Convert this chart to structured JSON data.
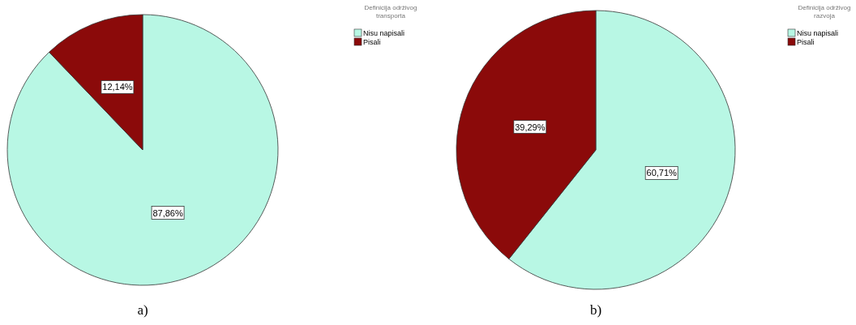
{
  "chart_data": [
    {
      "type": "pie",
      "legend_title": "Definicija održivog transporta",
      "categories": [
        "Nisu napisali",
        "Pisali"
      ],
      "values": [
        87.86,
        12.14
      ],
      "value_labels": [
        "87,86%",
        "12,14%"
      ],
      "colors": [
        "#b8f7e4",
        "#8b0a0a"
      ],
      "legend": "top right",
      "annotations": [
        "a)"
      ]
    },
    {
      "type": "pie",
      "legend_title": "Definicija održivog razvoja",
      "categories": [
        "Nisu napisali",
        "Pisali"
      ],
      "values": [
        60.71,
        39.29
      ],
      "value_labels": [
        "60,71%",
        "39,29%"
      ],
      "colors": [
        "#b8f7e4",
        "#8b0a0a"
      ],
      "legend": "top right",
      "annotations": [
        "b)"
      ]
    }
  ]
}
